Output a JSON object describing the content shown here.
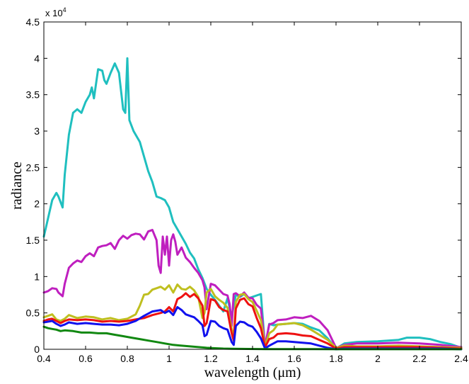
{
  "chart_data": {
    "type": "line",
    "title": "",
    "xlabel": "wavelength (μm)",
    "ylabel": "radiance",
    "xlim": [
      0.4,
      2.4
    ],
    "ylim": [
      0,
      45000
    ],
    "y_exponent_label": "x 10",
    "y_exponent_power": "4",
    "grid": false,
    "legend": "none",
    "x_ticks": [
      0.4,
      0.6,
      0.8,
      1,
      1.2,
      1.4,
      1.6,
      1.8,
      2,
      2.2,
      2.4
    ],
    "x_tick_labels": [
      "0.4",
      "0.6",
      "0.8",
      "1",
      "1.2",
      "1.4",
      "1.6",
      "1.8",
      "2",
      "2.2",
      "2.4"
    ],
    "y_ticks": [
      0,
      5000,
      10000,
      15000,
      20000,
      25000,
      30000,
      35000,
      40000,
      45000
    ],
    "y_tick_labels": [
      "0",
      "0.5",
      "1",
      "1.5",
      "2",
      "2.5",
      "3",
      "3.5",
      "4",
      "4.5"
    ],
    "series": [
      {
        "color": "#1fbfbf",
        "x": [
          0.4,
          0.42,
          0.44,
          0.46,
          0.47,
          0.49,
          0.5,
          0.52,
          0.54,
          0.56,
          0.58,
          0.6,
          0.62,
          0.63,
          0.64,
          0.66,
          0.68,
          0.69,
          0.7,
          0.72,
          0.74,
          0.76,
          0.78,
          0.79,
          0.8,
          0.81,
          0.83,
          0.86,
          0.88,
          0.9,
          0.92,
          0.94,
          0.96,
          0.98,
          1.0,
          1.02,
          1.05,
          1.08,
          1.1,
          1.12,
          1.14,
          1.16,
          1.18,
          1.2,
          1.22,
          1.24,
          1.26,
          1.28,
          1.3,
          1.32,
          1.34,
          1.36,
          1.38,
          1.4,
          1.42,
          1.44,
          1.46,
          1.48,
          1.5,
          1.52,
          1.56,
          1.6,
          1.64,
          1.68,
          1.72,
          1.76,
          1.8,
          1.84,
          1.9,
          2.0,
          2.05,
          2.1,
          2.14,
          2.2,
          2.25,
          2.3,
          2.35,
          2.4
        ],
        "y": [
          15500,
          18000,
          20500,
          21500,
          21000,
          19500,
          24000,
          29500,
          32500,
          33000,
          32500,
          34000,
          35000,
          36000,
          34500,
          38500,
          38300,
          37000,
          36500,
          38000,
          39300,
          38000,
          33000,
          32500,
          40000,
          31500,
          30000,
          28500,
          26500,
          24500,
          23000,
          21000,
          20800,
          20500,
          19500,
          17500,
          16000,
          14500,
          13300,
          12500,
          11000,
          9800,
          8300,
          7500,
          6800,
          6000,
          5200,
          7000,
          4500,
          7500,
          7200,
          7600,
          7000,
          7200,
          7400,
          7600,
          200,
          3500,
          3300,
          3400,
          3500,
          3600,
          3500,
          3000,
          2600,
          1500,
          100,
          800,
          1000,
          1100,
          1200,
          1300,
          1600,
          1600,
          1400,
          1000,
          700,
          200
        ]
      },
      {
        "color": "#bf1fbf",
        "x": [
          0.4,
          0.42,
          0.44,
          0.46,
          0.47,
          0.49,
          0.5,
          0.52,
          0.54,
          0.56,
          0.58,
          0.6,
          0.62,
          0.64,
          0.66,
          0.68,
          0.7,
          0.72,
          0.74,
          0.76,
          0.78,
          0.8,
          0.82,
          0.84,
          0.86,
          0.88,
          0.9,
          0.92,
          0.94,
          0.95,
          0.96,
          0.97,
          0.98,
          0.99,
          1.0,
          1.01,
          1.02,
          1.03,
          1.04,
          1.06,
          1.08,
          1.1,
          1.12,
          1.14,
          1.16,
          1.17,
          1.18,
          1.2,
          1.22,
          1.24,
          1.26,
          1.28,
          1.29,
          1.3,
          1.31,
          1.32,
          1.34,
          1.36,
          1.38,
          1.4,
          1.42,
          1.44,
          1.46,
          1.48,
          1.5,
          1.52,
          1.56,
          1.6,
          1.64,
          1.68,
          1.72,
          1.76,
          1.8,
          1.84,
          1.9,
          2.0,
          2.1,
          2.2,
          2.3,
          2.4
        ],
        "y": [
          7800,
          8000,
          8400,
          8300,
          7800,
          7300,
          9000,
          11200,
          11800,
          12200,
          12000,
          12800,
          13200,
          12800,
          14000,
          14200,
          14300,
          14600,
          13800,
          15000,
          15600,
          15200,
          15700,
          15900,
          15800,
          15100,
          16200,
          16400,
          15000,
          11500,
          10500,
          15500,
          13000,
          15500,
          11500,
          15000,
          15800,
          14800,
          13000,
          14000,
          12600,
          12000,
          11200,
          10500,
          9500,
          8500,
          5500,
          9000,
          8800,
          8200,
          7600,
          7400,
          6200,
          3200,
          7600,
          7700,
          7300,
          7800,
          7100,
          7000,
          6100,
          5600,
          500,
          3400,
          3600,
          4000,
          4100,
          4400,
          4300,
          4600,
          3900,
          2600,
          200,
          600,
          800,
          800,
          900,
          800,
          600,
          300
        ]
      },
      {
        "color": "#bfbf1f",
        "x": [
          0.4,
          0.42,
          0.44,
          0.46,
          0.48,
          0.5,
          0.52,
          0.56,
          0.6,
          0.64,
          0.68,
          0.72,
          0.76,
          0.8,
          0.84,
          0.86,
          0.88,
          0.9,
          0.92,
          0.94,
          0.96,
          0.98,
          1.0,
          1.02,
          1.04,
          1.06,
          1.08,
          1.1,
          1.12,
          1.14,
          1.16,
          1.17,
          1.18,
          1.2,
          1.22,
          1.24,
          1.26,
          1.28,
          1.3,
          1.31,
          1.32,
          1.34,
          1.36,
          1.38,
          1.4,
          1.42,
          1.44,
          1.46,
          1.48,
          1.5,
          1.52,
          1.56,
          1.6,
          1.64,
          1.68,
          1.72,
          1.76,
          1.8,
          1.84,
          1.9,
          2.0,
          2.1,
          2.2,
          2.3,
          2.4
        ],
        "y": [
          4400,
          4600,
          4800,
          4100,
          3900,
          4200,
          4700,
          4300,
          4500,
          4400,
          4100,
          4300,
          4000,
          4200,
          4800,
          6000,
          7500,
          7600,
          8200,
          8400,
          8600,
          8200,
          8800,
          7800,
          8900,
          8300,
          8200,
          8600,
          8100,
          7200,
          4300,
          5000,
          7800,
          8300,
          7300,
          6800,
          6400,
          5700,
          2800,
          1600,
          6500,
          7500,
          7600,
          6900,
          6500,
          5300,
          4000,
          400,
          2200,
          2600,
          3400,
          3500,
          3600,
          3300,
          2700,
          2000,
          1300,
          200,
          500,
          400,
          400,
          500,
          400,
          300,
          200
        ]
      },
      {
        "color": "#ee1111",
        "x": [
          0.4,
          0.42,
          0.44,
          0.46,
          0.48,
          0.5,
          0.52,
          0.56,
          0.6,
          0.64,
          0.68,
          0.72,
          0.76,
          0.8,
          0.84,
          0.88,
          0.92,
          0.96,
          0.98,
          1.0,
          1.02,
          1.04,
          1.06,
          1.08,
          1.1,
          1.12,
          1.14,
          1.16,
          1.17,
          1.18,
          1.2,
          1.22,
          1.24,
          1.26,
          1.28,
          1.3,
          1.31,
          1.32,
          1.34,
          1.36,
          1.38,
          1.4,
          1.42,
          1.44,
          1.46,
          1.48,
          1.5,
          1.52,
          1.56,
          1.6,
          1.64,
          1.68,
          1.72,
          1.76,
          1.8,
          1.84,
          1.9,
          2.0,
          2.1,
          2.2,
          2.3,
          2.4
        ],
        "y": [
          3900,
          4100,
          4200,
          3900,
          3600,
          3900,
          4100,
          4000,
          4100,
          4000,
          3800,
          3900,
          3800,
          3900,
          4100,
          4300,
          4700,
          5000,
          5200,
          5800,
          5200,
          6900,
          7200,
          7700,
          7200,
          7600,
          7000,
          6000,
          3200,
          3600,
          6900,
          6700,
          5800,
          5400,
          5200,
          2200,
          1200,
          5600,
          6800,
          7000,
          6200,
          5900,
          4300,
          2900,
          300,
          1400,
          1600,
          2100,
          2200,
          2100,
          1900,
          1800,
          1300,
          800,
          100,
          300,
          300,
          300,
          300,
          300,
          200,
          100
        ]
      },
      {
        "color": "#1111ee",
        "x": [
          0.4,
          0.42,
          0.44,
          0.46,
          0.48,
          0.5,
          0.52,
          0.56,
          0.6,
          0.64,
          0.68,
          0.72,
          0.76,
          0.8,
          0.84,
          0.88,
          0.92,
          0.96,
          0.98,
          1.0,
          1.02,
          1.04,
          1.06,
          1.08,
          1.1,
          1.12,
          1.14,
          1.16,
          1.17,
          1.18,
          1.2,
          1.22,
          1.24,
          1.26,
          1.28,
          1.3,
          1.31,
          1.32,
          1.34,
          1.36,
          1.38,
          1.4,
          1.42,
          1.44,
          1.46,
          1.48,
          1.5,
          1.52,
          1.56,
          1.6,
          1.64,
          1.68,
          1.72,
          1.76,
          1.8,
          1.84,
          1.9,
          2.0,
          2.1,
          2.2,
          2.3,
          2.4
        ],
        "y": [
          3700,
          3800,
          3900,
          3500,
          3200,
          3400,
          3700,
          3500,
          3600,
          3500,
          3400,
          3400,
          3300,
          3500,
          3900,
          4600,
          5200,
          5400,
          5000,
          5300,
          4700,
          5800,
          5400,
          4800,
          4600,
          4400,
          3900,
          3300,
          1800,
          2000,
          3900,
          3800,
          3200,
          2900,
          2700,
          1000,
          600,
          3200,
          3800,
          3700,
          3300,
          3100,
          2400,
          1500,
          100,
          500,
          800,
          1100,
          1100,
          1000,
          900,
          800,
          500,
          200,
          0,
          100,
          100,
          100,
          100,
          100,
          100,
          0
        ]
      },
      {
        "color": "#118811",
        "x": [
          0.4,
          0.42,
          0.44,
          0.46,
          0.48,
          0.5,
          0.54,
          0.58,
          0.62,
          0.66,
          0.7,
          0.74,
          0.78,
          0.82,
          0.86,
          0.9,
          0.94,
          0.98,
          1.02,
          1.06,
          1.1,
          1.14,
          1.18,
          1.22,
          1.26,
          1.3,
          1.34,
          1.38,
          1.42,
          1.46,
          1.5,
          1.6,
          1.7,
          1.8,
          1.9,
          2.0,
          2.1,
          2.2,
          2.3,
          2.4
        ],
        "y": [
          3100,
          2900,
          2800,
          2700,
          2500,
          2600,
          2500,
          2300,
          2300,
          2200,
          2200,
          2000,
          1800,
          1600,
          1400,
          1200,
          1000,
          800,
          600,
          500,
          400,
          300,
          200,
          150,
          100,
          80,
          60,
          50,
          40,
          20,
          20,
          20,
          20,
          10,
          10,
          10,
          10,
          10,
          10,
          10
        ]
      }
    ]
  }
}
